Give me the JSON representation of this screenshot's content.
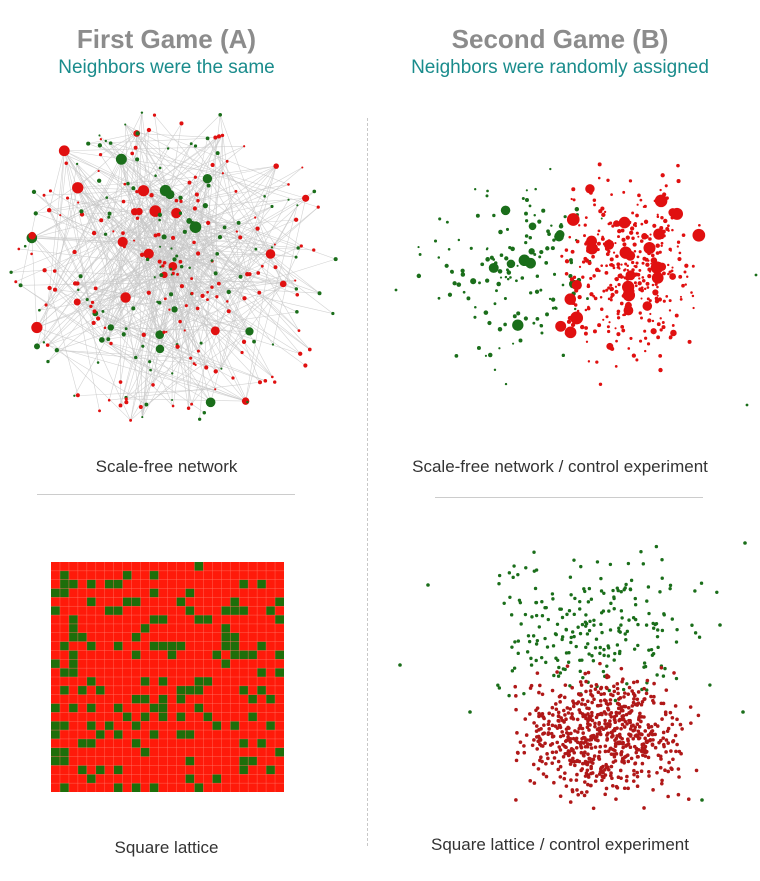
{
  "left": {
    "title": "First Game (A)",
    "subtitle": "Neighbors were the same",
    "top_caption": "Scale-free network",
    "bottom_caption": "Square lattice"
  },
  "right": {
    "title": "Second Game (B)",
    "subtitle": "Neighbors were randomly assigned",
    "top_caption": "Scale-free network / control experiment",
    "bottom_caption": "Square lattice / control experiment"
  },
  "colors": {
    "title": "#8c8c8c",
    "subtitle": "#1a8c8c",
    "red": "#e01010",
    "dark_red": "#b01818",
    "green": "#1a6e1a",
    "lattice_red": "#ff1a0a",
    "lattice_green": "#1e6e0a",
    "edge": "#c8c8c8"
  }
}
